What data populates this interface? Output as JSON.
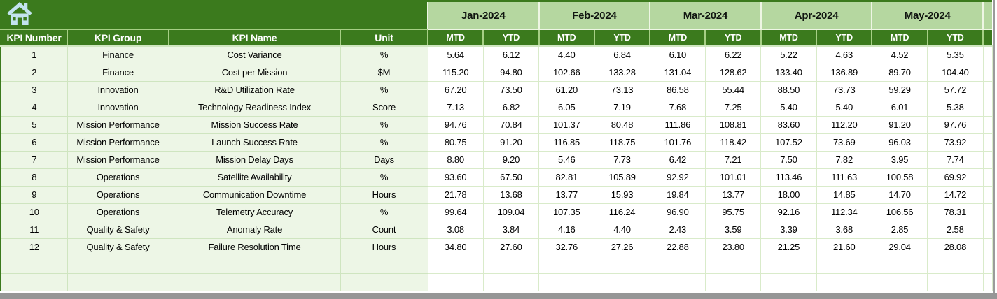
{
  "colors": {
    "header_dark_green": "#3B7A1D",
    "month_light_green": "#B5D7A0",
    "row_light_green": "#EDF6E6",
    "grid_line_green": "#CFE5C0",
    "icon_pale_blue": "#C3E3EF",
    "scrollbar_gray": "#969696"
  },
  "toolbar": {
    "home_icon": "home-icon"
  },
  "table": {
    "left_headers": [
      "KPI Number",
      "KPI Group",
      "KPI Name",
      "Unit"
    ],
    "months": [
      "Jan-2024",
      "Feb-2024",
      "Mar-2024",
      "Apr-2024",
      "May-2024"
    ],
    "sub_headers": [
      "MTD",
      "YTD"
    ],
    "empty_row_count": 2,
    "rows": [
      {
        "num": "1",
        "group": "Finance",
        "name": "Cost Variance",
        "unit": "%",
        "values": [
          "5.64",
          "6.12",
          "4.40",
          "6.84",
          "6.10",
          "6.22",
          "5.22",
          "4.63",
          "4.52",
          "5.35"
        ]
      },
      {
        "num": "2",
        "group": "Finance",
        "name": "Cost per Mission",
        "unit": "$M",
        "values": [
          "115.20",
          "94.80",
          "102.66",
          "133.28",
          "131.04",
          "128.62",
          "133.40",
          "136.89",
          "89.70",
          "104.40"
        ]
      },
      {
        "num": "3",
        "group": "Innovation",
        "name": "R&D Utilization Rate",
        "unit": "%",
        "values": [
          "67.20",
          "73.50",
          "61.20",
          "73.13",
          "86.58",
          "55.44",
          "88.50",
          "73.73",
          "59.29",
          "57.72"
        ]
      },
      {
        "num": "4",
        "group": "Innovation",
        "name": "Technology Readiness Index",
        "unit": "Score",
        "values": [
          "7.13",
          "6.82",
          "6.05",
          "7.19",
          "7.68",
          "7.25",
          "5.40",
          "5.40",
          "6.01",
          "5.38"
        ]
      },
      {
        "num": "5",
        "group": "Mission Performance",
        "name": "Mission Success Rate",
        "unit": "%",
        "values": [
          "94.76",
          "70.84",
          "101.37",
          "80.48",
          "111.86",
          "108.81",
          "83.60",
          "112.20",
          "91.20",
          "97.76"
        ]
      },
      {
        "num": "6",
        "group": "Mission Performance",
        "name": "Launch Success Rate",
        "unit": "%",
        "values": [
          "80.75",
          "91.20",
          "116.85",
          "118.75",
          "101.76",
          "118.42",
          "107.52",
          "73.69",
          "96.03",
          "73.92"
        ]
      },
      {
        "num": "7",
        "group": "Mission Performance",
        "name": "Mission Delay Days",
        "unit": "Days",
        "values": [
          "8.80",
          "9.20",
          "5.46",
          "7.73",
          "6.42",
          "7.21",
          "7.50",
          "7.82",
          "3.95",
          "7.74"
        ]
      },
      {
        "num": "8",
        "group": "Operations",
        "name": "Satellite Availability",
        "unit": "%",
        "values": [
          "93.60",
          "67.50",
          "82.81",
          "105.89",
          "92.92",
          "101.01",
          "113.46",
          "111.63",
          "100.58",
          "69.92"
        ]
      },
      {
        "num": "9",
        "group": "Operations",
        "name": "Communication Downtime",
        "unit": "Hours",
        "values": [
          "21.78",
          "13.68",
          "13.77",
          "15.93",
          "19.84",
          "13.77",
          "18.00",
          "14.85",
          "14.70",
          "14.72"
        ]
      },
      {
        "num": "10",
        "group": "Operations",
        "name": "Telemetry Accuracy",
        "unit": "%",
        "values": [
          "99.64",
          "109.04",
          "107.35",
          "116.24",
          "96.90",
          "95.75",
          "92.16",
          "112.34",
          "106.56",
          "78.31"
        ]
      },
      {
        "num": "11",
        "group": "Quality & Safety",
        "name": "Anomaly Rate",
        "unit": "Count",
        "values": [
          "3.08",
          "3.84",
          "4.16",
          "4.40",
          "2.43",
          "3.59",
          "3.39",
          "3.68",
          "2.85",
          "2.58"
        ]
      },
      {
        "num": "12",
        "group": "Quality & Safety",
        "name": "Failure Resolution Time",
        "unit": "Hours",
        "values": [
          "34.80",
          "27.60",
          "32.76",
          "27.26",
          "22.88",
          "23.80",
          "21.25",
          "21.60",
          "29.04",
          "28.08"
        ]
      }
    ]
  }
}
